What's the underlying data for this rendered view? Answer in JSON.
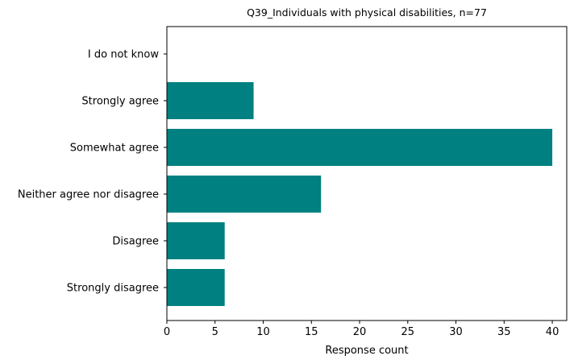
{
  "chart_data": {
    "type": "bar",
    "orientation": "horizontal",
    "title": "Q39_Individuals with physical disabilities, n=77",
    "xlabel": "Response count",
    "ylabel": "",
    "categories": [
      "Strongly disagree",
      "Disagree",
      "Neither agree nor disagree",
      "Somewhat agree",
      "Strongly agree",
      "I do not know"
    ],
    "values": [
      6,
      6,
      16,
      40,
      9,
      0
    ],
    "xlim": [
      0,
      41.5
    ],
    "xticks": [
      0,
      5,
      10,
      15,
      20,
      25,
      30,
      35,
      40
    ],
    "bar_color": "#008080",
    "grid": false,
    "legend": "none"
  }
}
